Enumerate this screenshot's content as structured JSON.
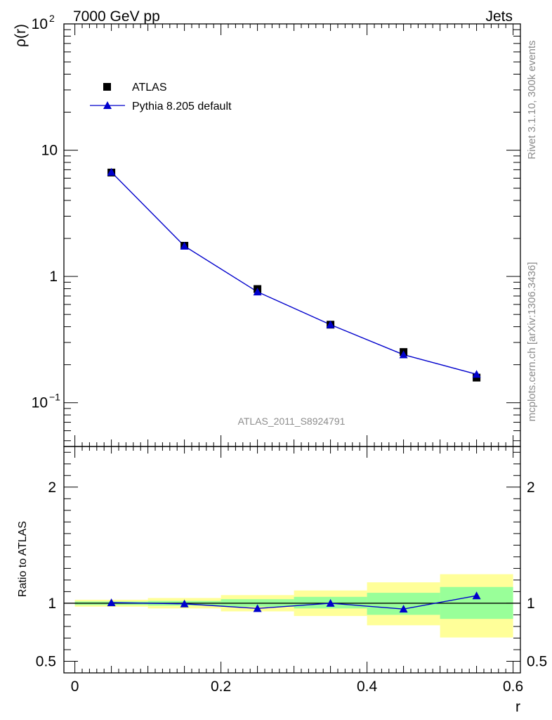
{
  "header": {
    "beam": "7000 GeV pp",
    "process": "Jets"
  },
  "side_labels": {
    "rivet": "Rivet 3.1.10,  300k events",
    "source": "mcplots.cern.ch [arXiv:1306.3436]"
  },
  "analysis_id": "ATLAS_2011_S8924791",
  "colors": {
    "data": "#000000",
    "mc": "#0000cc",
    "band_inner": "#99ff99",
    "band_outer": "#ffff99"
  },
  "chart_data": [
    {
      "type": "scatter",
      "title": "",
      "ylabel": "ρ(r)",
      "xlabel": "",
      "yscale": "log",
      "xlim": [
        -0.015,
        0.61
      ],
      "ylim": [
        0.045,
        100
      ],
      "yticks": [
        {
          "value": 100,
          "label": "10",
          "exp": "2"
        },
        {
          "value": 10,
          "label": "10",
          "exp": ""
        },
        {
          "value": 1,
          "label": "1",
          "exp": ""
        },
        {
          "value": 0.1,
          "label": "10",
          "exp": "−1"
        }
      ],
      "legend": {
        "position": "top-left",
        "entries": [
          "ATLAS",
          "Pythia 8.205 default"
        ]
      },
      "x": [
        0.05,
        0.15,
        0.25,
        0.35,
        0.45,
        0.55
      ],
      "series": [
        {
          "name": "ATLAS",
          "marker": "square",
          "values": [
            6.65,
            1.75,
            0.795,
            0.415,
            0.252,
            0.158
          ]
        },
        {
          "name": "Pythia 8.205 default",
          "marker": "triangle",
          "line": true,
          "values": [
            6.7,
            1.74,
            0.755,
            0.415,
            0.24,
            0.168
          ]
        }
      ]
    },
    {
      "type": "scatter",
      "ylabel": "Ratio to ATLAS",
      "xlabel": "r",
      "xlim": [
        -0.015,
        0.61
      ],
      "ylim": [
        0.4,
        2.35
      ],
      "yticks": [
        {
          "value": 0.5,
          "label": "0.5"
        },
        {
          "value": 1,
          "label": "1"
        },
        {
          "value": 2,
          "label": "2"
        }
      ],
      "xticks": [
        {
          "value": 0,
          "label": "0"
        },
        {
          "value": 0.2,
          "label": "0.2"
        },
        {
          "value": 0.4,
          "label": "0.4"
        },
        {
          "value": 0.6,
          "label": "0.6"
        }
      ],
      "reference": 1,
      "bands": [
        {
          "x0": 0.0,
          "x1": 0.1,
          "inner": [
            0.985,
            1.015
          ],
          "outer": [
            0.97,
            1.03
          ]
        },
        {
          "x0": 0.1,
          "x1": 0.2,
          "inner": [
            0.98,
            1.02
          ],
          "outer": [
            0.955,
            1.045
          ]
        },
        {
          "x0": 0.2,
          "x1": 0.3,
          "inner": [
            0.97,
            1.035
          ],
          "outer": [
            0.93,
            1.07
          ]
        },
        {
          "x0": 0.3,
          "x1": 0.4,
          "inner": [
            0.955,
            1.055
          ],
          "outer": [
            0.89,
            1.11
          ]
        },
        {
          "x0": 0.4,
          "x1": 0.5,
          "inner": [
            0.9,
            1.09
          ],
          "outer": [
            0.81,
            1.18
          ]
        },
        {
          "x0": 0.5,
          "x1": 0.6,
          "inner": [
            0.865,
            1.14
          ],
          "outer": [
            0.705,
            1.25
          ]
        }
      ],
      "x": [
        0.05,
        0.15,
        0.25,
        0.35,
        0.45,
        0.55
      ],
      "series": [
        {
          "name": "Pythia 8.205 default",
          "values": [
            1.005,
            0.995,
            0.955,
            1.0,
            0.95,
            1.065
          ],
          "errors": [
            0.008,
            0.015,
            0.02,
            0.025,
            0.02,
            0.02
          ]
        }
      ]
    }
  ]
}
